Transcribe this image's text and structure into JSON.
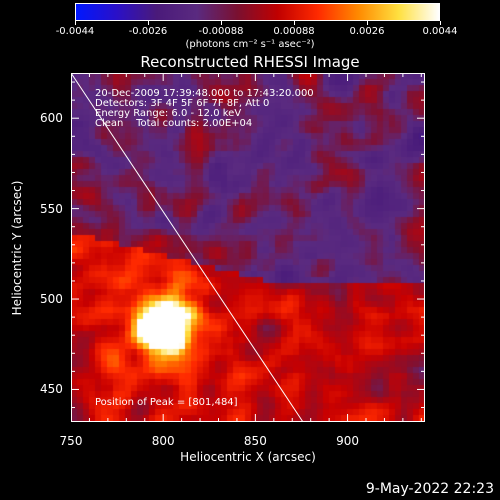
{
  "colorbar": {
    "tick_labels": [
      "-0.0044",
      "-0.0026",
      "-0.00088",
      "0.00088",
      "0.0026",
      "0.0044"
    ],
    "units_label": "(photons cm⁻² s⁻¹ asec⁻²)",
    "colors": [
      "#0018ff",
      "#2a10c8",
      "#4a1a7a",
      "#5a2a80",
      "#7a1030",
      "#c00000",
      "#ff2a00",
      "#ff8a00",
      "#ffe040",
      "#ffffff"
    ]
  },
  "plot": {
    "title": "Reconstructed RHESSI Image",
    "info_lines": [
      "20-Dec-2009 17:39:48.000 to 17:43:20.000",
      "Detectors: 3F 4F 5F 6F 7F 8F, Att 0",
      "Energy Range: 6.0 - 12.0 keV",
      "Clean    Total counts: 2.00E+04"
    ],
    "peak_text": "Position of Peak = [801,484]",
    "x_label": "Heliocentric X (arcsec)",
    "y_label": "Heliocentric Y (arcsec)",
    "x_ticks": [
      "750",
      "800",
      "850",
      "900"
    ],
    "y_ticks": [
      "600",
      "550",
      "500",
      "450"
    ],
    "x_range": [
      750,
      942
    ],
    "y_range": [
      432,
      625
    ],
    "peak": [
      801,
      484
    ]
  },
  "footer": {
    "timestamp": "9-May-2022 22:23"
  }
}
